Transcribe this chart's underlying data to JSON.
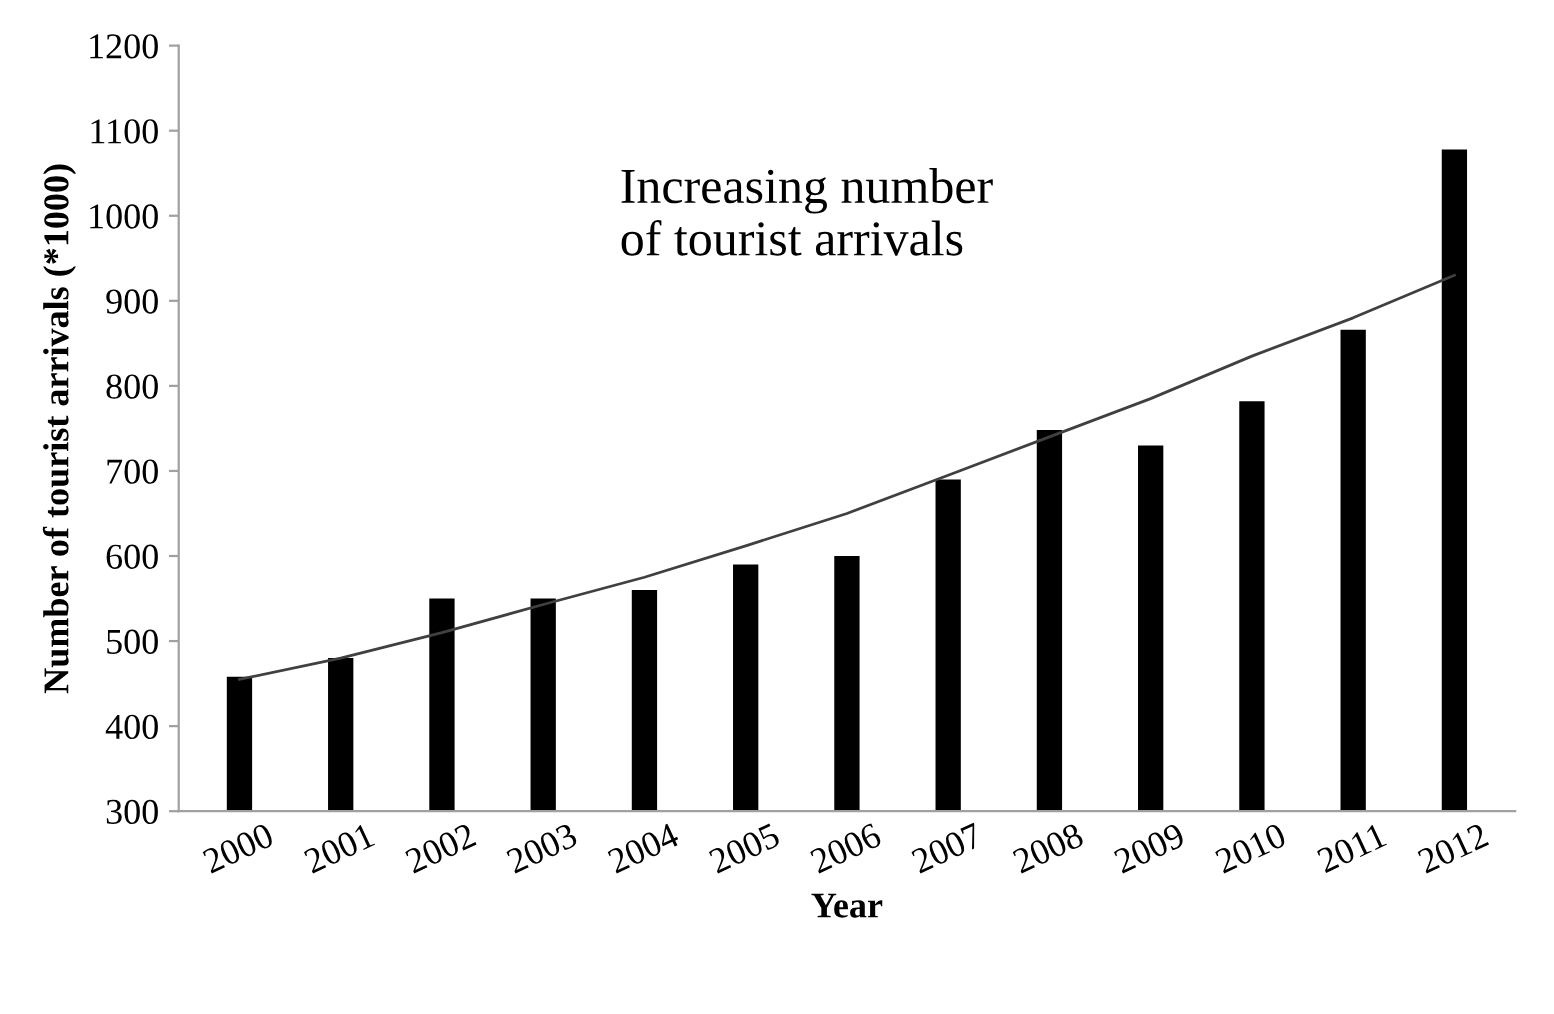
{
  "chart_data": {
    "type": "bar",
    "xlabel": "Year",
    "ylabel": "Number of tourist arrivals (*1000)",
    "categories": [
      "2000",
      "2001",
      "2002",
      "2003",
      "2004",
      "2005",
      "2006",
      "2007",
      "2008",
      "2009",
      "2010",
      "2011",
      "2012"
    ],
    "series": [
      {
        "color": "#000000",
        "values": [
          458,
          480,
          550,
          550,
          560,
          590,
          600,
          690,
          748,
          730,
          782,
          866,
          1078
        ]
      },
      {
        "type": "line",
        "color": "#404040",
        "values": [
          455,
          480,
          510,
          543,
          575,
          612,
          650,
          695,
          740,
          785,
          835,
          880,
          930
        ]
      }
    ],
    "ylim": [
      300,
      1200
    ],
    "yticks": [
      300,
      400,
      500,
      600,
      700,
      800,
      900,
      1000,
      1100,
      1200
    ],
    "annotations": [
      "Increasing number\nof tourist arrivals"
    ],
    "grid": false,
    "legend": false,
    "line_style": "solid",
    "marker": "none"
  }
}
